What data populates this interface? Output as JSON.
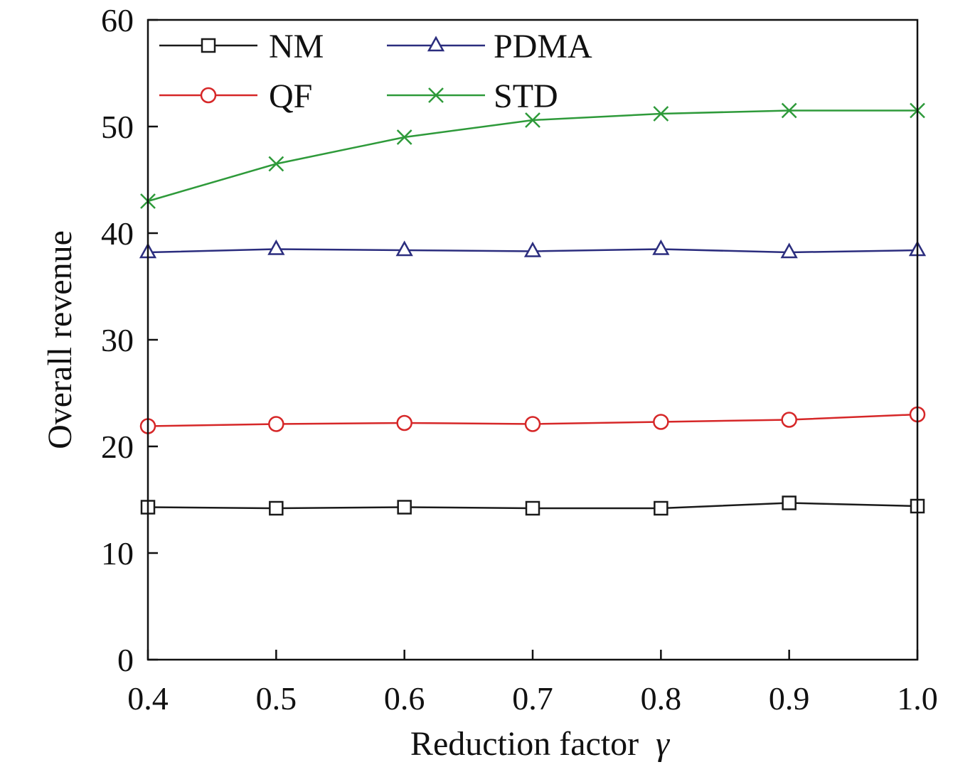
{
  "chart_data": {
    "type": "line",
    "xlabel": "Reduction factor",
    "xlabel_symbol": "γ",
    "ylabel": "Overall revenue",
    "xlim": [
      0.4,
      1.0
    ],
    "ylim": [
      0,
      60
    ],
    "x": [
      0.4,
      0.5,
      0.6,
      0.7,
      0.8,
      0.9,
      1.0
    ],
    "x_tick_labels": [
      "0.4",
      "0.5",
      "0.6",
      "0.7",
      "0.8",
      "0.9",
      "1.0"
    ],
    "y_ticks": [
      0,
      10,
      20,
      30,
      40,
      50,
      60
    ],
    "y_tick_labels": [
      "0",
      "10",
      "20",
      "30",
      "40",
      "50",
      "60"
    ],
    "grid": false,
    "legend_position": "top-left",
    "series": [
      {
        "name": "NM",
        "color": "#1a1a1a",
        "marker": "square",
        "values": [
          14.3,
          14.2,
          14.3,
          14.2,
          14.2,
          14.7,
          14.4
        ]
      },
      {
        "name": "PDMA",
        "color": "#2b2d7e",
        "marker": "triangle",
        "values": [
          38.2,
          38.5,
          38.4,
          38.3,
          38.5,
          38.2,
          38.4
        ]
      },
      {
        "name": "QF",
        "color": "#d62728",
        "marker": "circle",
        "values": [
          21.9,
          22.1,
          22.2,
          22.1,
          22.3,
          22.5,
          23.0
        ]
      },
      {
        "name": "STD",
        "color": "#2e9a3a",
        "marker": "x",
        "values": [
          43.0,
          46.5,
          49.0,
          50.6,
          51.2,
          51.5,
          51.5
        ]
      }
    ]
  }
}
